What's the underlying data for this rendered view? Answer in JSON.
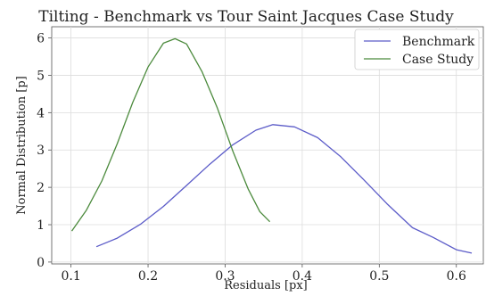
{
  "chart_data": {
    "type": "line",
    "title": "Tilting - Benchmark vs Tour Saint Jacques Case Study",
    "xlabel": "Residuals [px]",
    "ylabel": "Normal Distribution [p]",
    "xlim": [
      0.075,
      0.635
    ],
    "ylim": [
      -0.05,
      6.3
    ],
    "xticks": [
      0.1,
      0.2,
      0.3,
      0.4,
      0.5,
      0.6
    ],
    "xtick_labels": [
      "0.1",
      "0.2",
      "0.3",
      "0.4",
      "0.5",
      "0.6"
    ],
    "yticks": [
      0,
      1,
      2,
      3,
      4,
      5,
      6
    ],
    "ytick_labels": [
      "0",
      "1",
      "2",
      "3",
      "4",
      "5",
      "6"
    ],
    "grid": true,
    "legend_position": "top-right",
    "series": [
      {
        "name": "Benchmark",
        "color": "#5b5bc8",
        "x": [
          0.133,
          0.16,
          0.19,
          0.22,
          0.25,
          0.28,
          0.31,
          0.34,
          0.362,
          0.39,
          0.42,
          0.45,
          0.48,
          0.51,
          0.543,
          0.57,
          0.6,
          0.62
        ],
        "y": [
          0.41,
          0.64,
          1.01,
          1.49,
          2.05,
          2.62,
          3.14,
          3.53,
          3.68,
          3.62,
          3.33,
          2.82,
          2.2,
          1.56,
          0.92,
          0.66,
          0.33,
          0.24
        ]
      },
      {
        "name": "Case Study",
        "color": "#4b8a3c",
        "x": [
          0.101,
          0.12,
          0.14,
          0.16,
          0.18,
          0.2,
          0.22,
          0.235,
          0.25,
          0.27,
          0.29,
          0.31,
          0.33,
          0.345,
          0.358
        ],
        "y": [
          0.83,
          1.39,
          2.17,
          3.17,
          4.27,
          5.22,
          5.86,
          5.98,
          5.84,
          5.1,
          4.12,
          2.97,
          1.95,
          1.35,
          1.08
        ]
      }
    ]
  }
}
